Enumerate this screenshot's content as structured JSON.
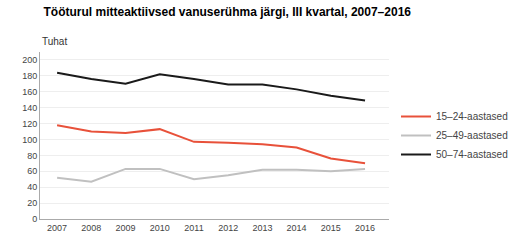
{
  "chart_data": {
    "type": "line",
    "title": "Tööturul mitteaktiivsed vanuserühma järgi, III kvartal, 2007–2016",
    "ylabel": "Tuhat",
    "x": [
      2007,
      2008,
      2009,
      2010,
      2011,
      2012,
      2013,
      2014,
      2015,
      2016
    ],
    "series": [
      {
        "name": "15–24-aastased",
        "color": "#e8513a",
        "values": [
          118,
          110,
          108,
          113,
          97,
          96,
          94,
          90,
          76,
          70
        ]
      },
      {
        "name": "25–49-aastased",
        "color": "#c0c0c0",
        "values": [
          52,
          47,
          63,
          63,
          50,
          55,
          62,
          62,
          60,
          63
        ]
      },
      {
        "name": "50–74-aastased",
        "color": "#1a1a1a",
        "values": [
          184,
          176,
          170,
          182,
          176,
          169,
          169,
          163,
          155,
          149
        ]
      }
    ],
    "xlim": [
      2006.5,
      2016.7
    ],
    "xticks": [
      2007,
      2008,
      2009,
      2010,
      2011,
      2012,
      2013,
      2014,
      2015,
      2016
    ],
    "ylim": [
      0,
      210
    ],
    "yticks": [
      0,
      20,
      40,
      60,
      80,
      100,
      120,
      140,
      160,
      180,
      200
    ],
    "grid": true,
    "legend": "right"
  }
}
